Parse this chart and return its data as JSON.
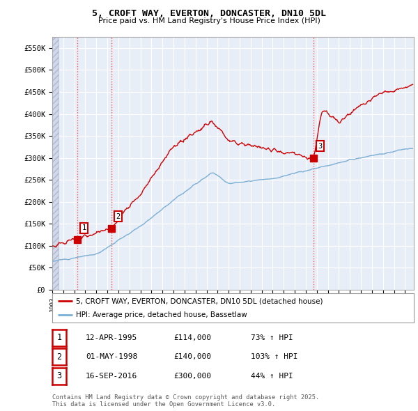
{
  "title": "5, CROFT WAY, EVERTON, DONCASTER, DN10 5DL",
  "subtitle": "Price paid vs. HM Land Registry's House Price Index (HPI)",
  "ylim": [
    0,
    575000
  ],
  "yticks": [
    0,
    50000,
    100000,
    150000,
    200000,
    250000,
    300000,
    350000,
    400000,
    450000,
    500000,
    550000
  ],
  "ytick_labels": [
    "£0",
    "£50K",
    "£100K",
    "£150K",
    "£200K",
    "£250K",
    "£300K",
    "£350K",
    "£400K",
    "£450K",
    "£500K",
    "£550K"
  ],
  "xlim": [
    1993.0,
    2025.8
  ],
  "red_line_color": "#cc0000",
  "blue_line_color": "#7bafd4",
  "background_color": "#ffffff",
  "plot_bg_color": "#e8eef8",
  "grid_color": "#ffffff",
  "sale_markers": [
    {
      "date_x": 1995.28,
      "price": 114000,
      "label": "1"
    },
    {
      "date_x": 1998.37,
      "price": 140000,
      "label": "2"
    },
    {
      "date_x": 2016.71,
      "price": 300000,
      "label": "3"
    }
  ],
  "legend_entries": [
    "5, CROFT WAY, EVERTON, DONCASTER, DN10 5DL (detached house)",
    "HPI: Average price, detached house, Bassetlaw"
  ],
  "table_entries": [
    {
      "num": "1",
      "date": "12-APR-1995",
      "price": "£114,000",
      "change": "73% ↑ HPI"
    },
    {
      "num": "2",
      "date": "01-MAY-1998",
      "price": "£140,000",
      "change": "103% ↑ HPI"
    },
    {
      "num": "3",
      "date": "16-SEP-2016",
      "price": "£300,000",
      "change": "44% ↑ HPI"
    }
  ],
  "footer": "Contains HM Land Registry data © Crown copyright and database right 2025.\nThis data is licensed under the Open Government Licence v3.0."
}
